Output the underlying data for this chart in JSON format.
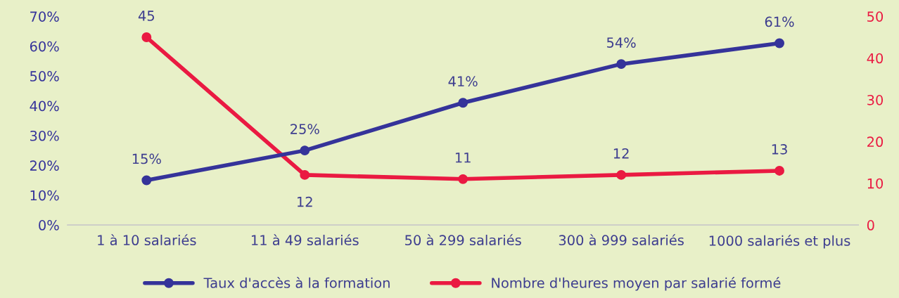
{
  "chart_data": {
    "type": "line",
    "categories": [
      "1 à 10 salariés",
      "11 à 49 salariés",
      "50 à 299 salariés",
      "300 à 999 salariés",
      "1000 salariés et plus"
    ],
    "series": [
      {
        "name": "Taux d'accès à la formation",
        "color": "#35339a",
        "values": [
          15,
          25,
          41,
          54,
          61
        ],
        "value_labels": [
          "15%",
          "25%",
          "41%",
          "54%",
          "61%"
        ]
      },
      {
        "name": "Nombre d'heures moyen par salarié formé",
        "color": "#ea1a42",
        "axis": "y2",
        "values": [
          45,
          12,
          11,
          12,
          13
        ],
        "value_labels": [
          "45",
          "12",
          "11",
          "12",
          "13"
        ]
      }
    ],
    "ylim": [
      0,
      70
    ],
    "yticks": [
      {
        "value": 0,
        "label": "0%"
      },
      {
        "value": 10,
        "label": "10%"
      },
      {
        "value": 20,
        "label": "20%"
      },
      {
        "value": 30,
        "label": "30%"
      },
      {
        "value": 40,
        "label": "40%"
      },
      {
        "value": 50,
        "label": "50%"
      },
      {
        "value": 60,
        "label": "60%"
      },
      {
        "value": 70,
        "label": "70%"
      }
    ],
    "y2lim": [
      0,
      50
    ],
    "y2ticks": [
      0,
      10,
      20,
      30,
      40,
      50
    ],
    "grid": false,
    "legend": "bottom",
    "marker": "circle",
    "line_style": "solid"
  }
}
